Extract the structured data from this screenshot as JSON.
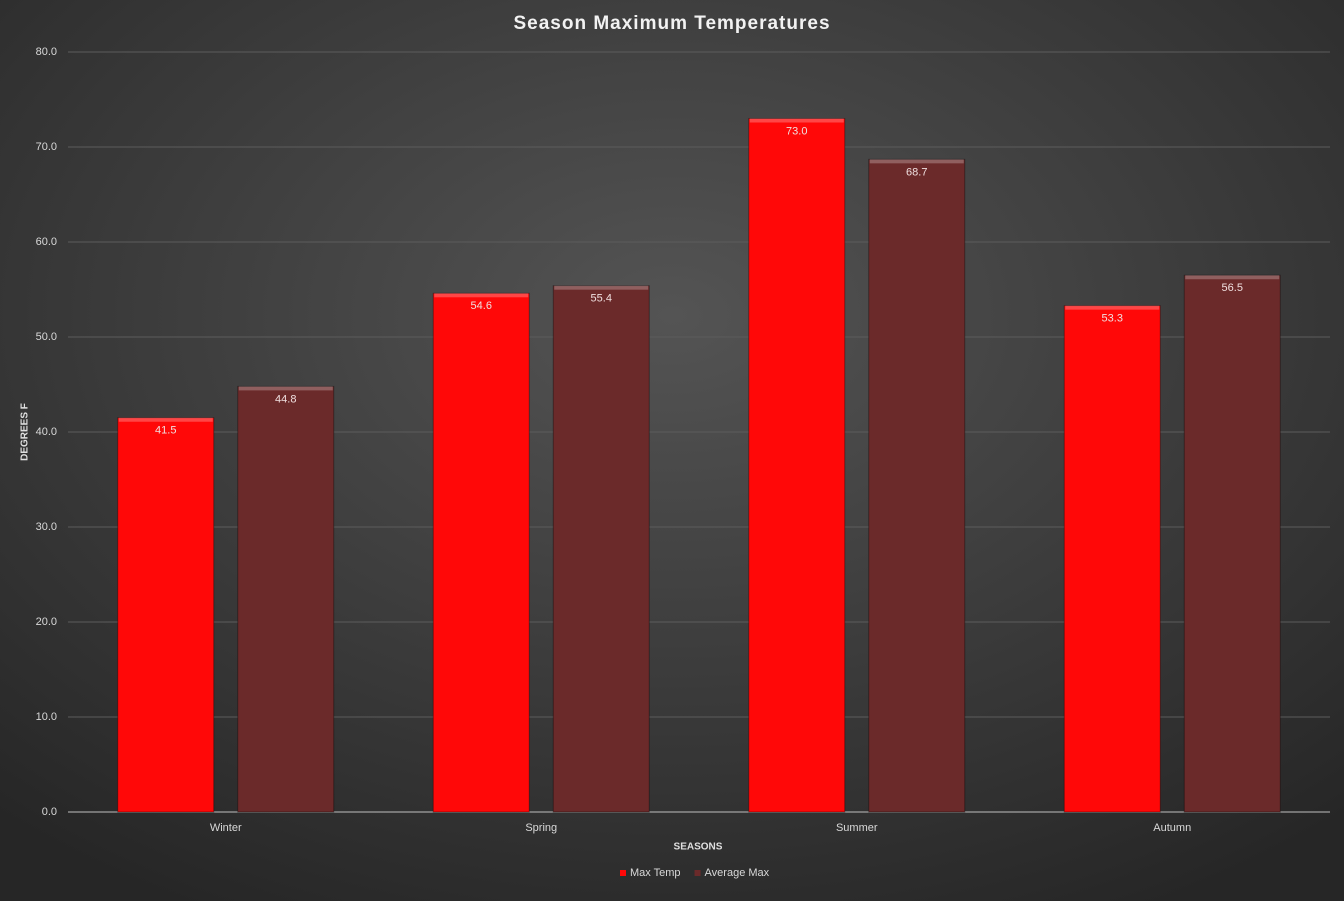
{
  "chart_data": {
    "type": "bar",
    "title": "Season Maximum Temperatures",
    "x_label": "SEASONS",
    "y_label": "DEGREES F",
    "categories": [
      "Winter",
      "Spring",
      "Summer",
      "Autumn"
    ],
    "series": [
      {
        "name": "Max Temp",
        "color": "#ff0808",
        "values": [
          41.5,
          54.6,
          73.0,
          53.3
        ],
        "value_labels": [
          "41.5",
          "54.6",
          "73.0",
          "53.3"
        ]
      },
      {
        "name": "Average Max",
        "color": "#6b2a2a",
        "values": [
          44.8,
          55.4,
          68.7,
          56.5
        ],
        "value_labels": [
          "44.8",
          "55.4",
          "68.7",
          "56.5"
        ]
      }
    ],
    "ylim": [
      0,
      80
    ],
    "yticks": [
      {
        "value": 0,
        "label": "0.0"
      },
      {
        "value": 10,
        "label": "10.0"
      },
      {
        "value": 20,
        "label": "20.0"
      },
      {
        "value": 30,
        "label": "30.0"
      },
      {
        "value": 40,
        "label": "40.0"
      },
      {
        "value": 50,
        "label": "50.0"
      },
      {
        "value": 60,
        "label": "60.0"
      },
      {
        "value": 70,
        "label": "70.0"
      },
      {
        "value": 80,
        "label": "80.0"
      }
    ],
    "grid": true,
    "legend": "bottom"
  }
}
